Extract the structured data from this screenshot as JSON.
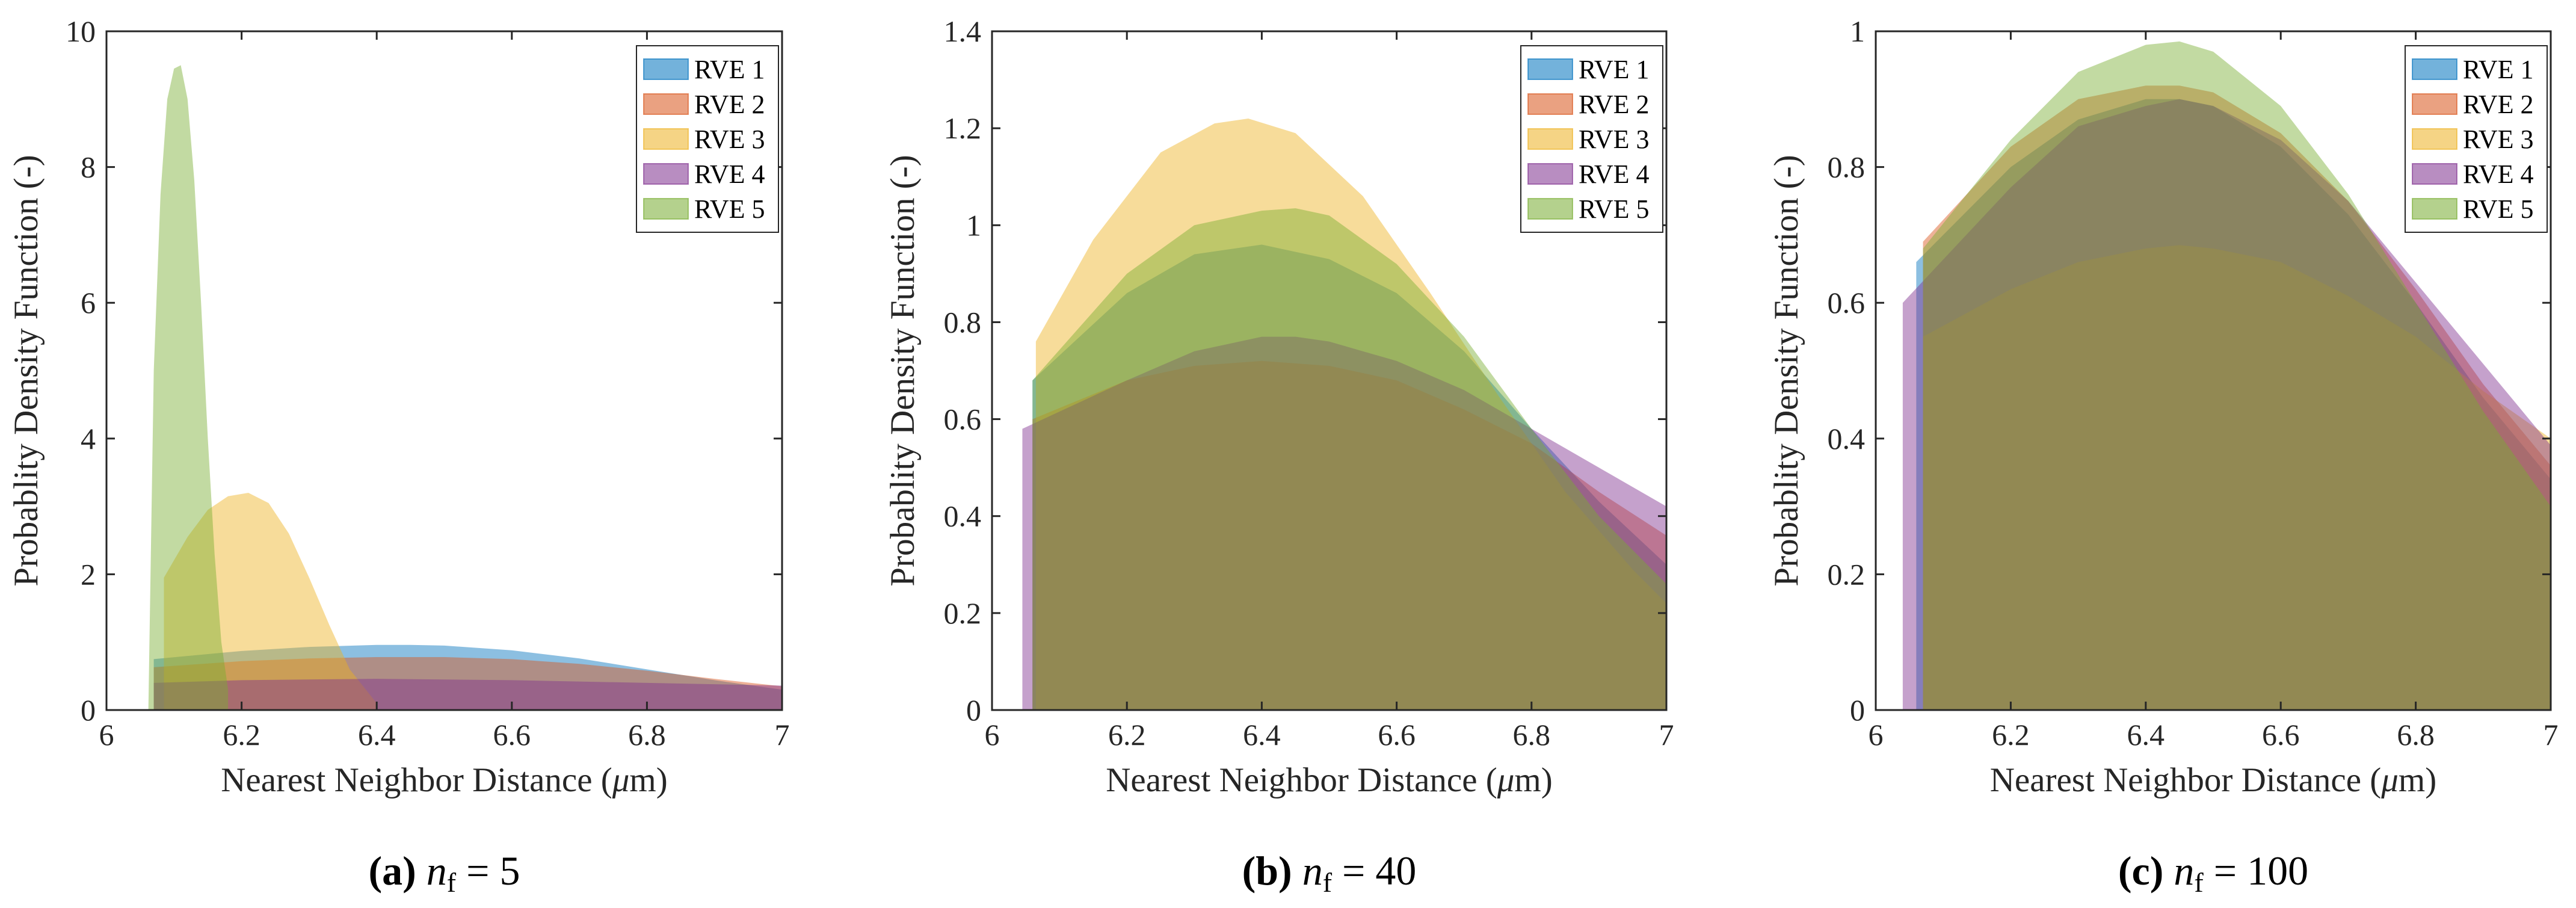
{
  "series_colors": [
    "#0072BD",
    "#D95319",
    "#EDB120",
    "#7E2F8E",
    "#77AC30"
  ],
  "chart_data": [
    {
      "type": "area",
      "caption": {
        "tag": "(a)",
        "var": "n",
        "sub": "f",
        "eq": " = 5"
      },
      "xlabel_main": "Nearest Neighbor Distance (",
      "xlabel_mu": "μ",
      "xlabel_end": "m)",
      "ylabel": "Probablity Density Function (-)",
      "xlim": [
        6,
        7
      ],
      "ylim": [
        0,
        10
      ],
      "xticks": [
        6,
        6.2,
        6.4,
        6.6,
        6.8,
        7
      ],
      "xtick_labels": [
        "6",
        "6.2",
        "6.4",
        "6.6",
        "6.8",
        "7"
      ],
      "yticks": [
        0,
        2,
        4,
        6,
        8,
        10
      ],
      "ytick_labels": [
        "0",
        "2",
        "4",
        "6",
        "8",
        "10"
      ],
      "legend": [
        "RVE 1",
        "RVE 2",
        "RVE 3",
        "RVE 4",
        "RVE 5"
      ],
      "legend_position": "top-right",
      "series": [
        {
          "name": "RVE 1",
          "x": [
            6.07,
            6.2,
            6.3,
            6.4,
            6.45,
            6.5,
            6.6,
            6.7,
            6.8,
            6.9,
            7.0
          ],
          "y": [
            0.75,
            0.87,
            0.93,
            0.96,
            0.96,
            0.95,
            0.88,
            0.76,
            0.6,
            0.44,
            0.3
          ]
        },
        {
          "name": "RVE 2",
          "x": [
            6.07,
            6.2,
            6.3,
            6.4,
            6.5,
            6.6,
            6.7,
            6.8,
            6.9,
            7.0
          ],
          "y": [
            0.63,
            0.72,
            0.76,
            0.78,
            0.78,
            0.75,
            0.68,
            0.58,
            0.46,
            0.35
          ]
        },
        {
          "name": "RVE 3",
          "x": [
            6.085,
            6.12,
            6.15,
            6.18,
            6.21,
            6.24,
            6.27,
            6.3,
            6.33,
            6.36,
            6.4
          ],
          "y": [
            1.95,
            2.55,
            2.95,
            3.15,
            3.2,
            3.05,
            2.6,
            1.95,
            1.25,
            0.6,
            0.1
          ]
        },
        {
          "name": "RVE 4",
          "x": [
            6.07,
            6.2,
            6.4,
            6.6,
            6.8,
            6.9,
            7.0
          ],
          "y": [
            0.4,
            0.44,
            0.46,
            0.44,
            0.4,
            0.38,
            0.36
          ]
        },
        {
          "name": "RVE 5",
          "x": [
            6.062,
            6.07,
            6.08,
            6.09,
            6.1,
            6.11,
            6.12,
            6.13,
            6.14,
            6.15,
            6.16,
            6.17,
            6.18
          ],
          "y": [
            0.0,
            5.0,
            7.6,
            9.0,
            9.45,
            9.5,
            9.0,
            7.8,
            6.0,
            4.0,
            2.3,
            1.0,
            0.3
          ]
        }
      ]
    },
    {
      "type": "area",
      "caption": {
        "tag": "(b)",
        "var": "n",
        "sub": "f",
        "eq": " = 40"
      },
      "xlabel_main": "Nearest Neighbor Distance (",
      "xlabel_mu": "μ",
      "xlabel_end": "m)",
      "ylabel": "Probablity Density Function (-)",
      "xlim": [
        6,
        7
      ],
      "ylim": [
        0,
        1.4
      ],
      "xticks": [
        6,
        6.2,
        6.4,
        6.6,
        6.8,
        7
      ],
      "xtick_labels": [
        "6",
        "6.2",
        "6.4",
        "6.6",
        "6.8",
        "7"
      ],
      "yticks": [
        0,
        0.2,
        0.4,
        0.6,
        0.8,
        1.0,
        1.2,
        1.4
      ],
      "ytick_labels": [
        "0",
        "0.2",
        "0.4",
        "0.6",
        "0.8",
        "1",
        "1.2",
        "1.4"
      ],
      "legend": [
        "RVE 1",
        "RVE 2",
        "RVE 3",
        "RVE 4",
        "RVE 5"
      ],
      "legend_position": "top-right",
      "series": [
        {
          "name": "RVE 1",
          "x": [
            6.06,
            6.2,
            6.3,
            6.4,
            6.5,
            6.6,
            6.7,
            6.8,
            6.9,
            7.0
          ],
          "y": [
            0.68,
            0.86,
            0.94,
            0.96,
            0.93,
            0.86,
            0.74,
            0.58,
            0.43,
            0.3
          ]
        },
        {
          "name": "RVE 2",
          "x": [
            6.06,
            6.2,
            6.3,
            6.4,
            6.5,
            6.6,
            6.7,
            6.8,
            6.9,
            7.0
          ],
          "y": [
            0.6,
            0.68,
            0.71,
            0.72,
            0.71,
            0.68,
            0.62,
            0.55,
            0.45,
            0.36
          ]
        },
        {
          "name": "RVE 3",
          "x": [
            6.065,
            6.15,
            6.25,
            6.33,
            6.38,
            6.45,
            6.55,
            6.65,
            6.75,
            6.85,
            6.95,
            7.0
          ],
          "y": [
            0.76,
            0.97,
            1.15,
            1.21,
            1.22,
            1.19,
            1.06,
            0.86,
            0.65,
            0.45,
            0.29,
            0.22
          ]
        },
        {
          "name": "RVE 4",
          "x": [
            6.045,
            6.2,
            6.3,
            6.4,
            6.45,
            6.5,
            6.6,
            6.7,
            6.8,
            6.9,
            7.0
          ],
          "y": [
            0.58,
            0.68,
            0.74,
            0.77,
            0.77,
            0.76,
            0.72,
            0.66,
            0.58,
            0.5,
            0.42
          ]
        },
        {
          "name": "RVE 5",
          "x": [
            6.06,
            6.2,
            6.3,
            6.4,
            6.45,
            6.5,
            6.6,
            6.7,
            6.8,
            6.9,
            7.0
          ],
          "y": [
            0.68,
            0.9,
            1.0,
            1.03,
            1.035,
            1.02,
            0.92,
            0.77,
            0.58,
            0.4,
            0.26
          ]
        }
      ]
    },
    {
      "type": "area",
      "caption": {
        "tag": "(c)",
        "var": "n",
        "sub": "f",
        "eq": " = 100"
      },
      "xlabel_main": "Nearest Neighbor Distance (",
      "xlabel_mu": "μ",
      "xlabel_end": "m)",
      "ylabel": "Probablity Density Function (-)",
      "xlim": [
        6,
        7
      ],
      "ylim": [
        0,
        1
      ],
      "xticks": [
        6,
        6.2,
        6.4,
        6.6,
        6.8,
        7
      ],
      "xtick_labels": [
        "6",
        "6.2",
        "6.4",
        "6.6",
        "6.8",
        "7"
      ],
      "yticks": [
        0,
        0.2,
        0.4,
        0.6,
        0.8,
        1.0
      ],
      "ytick_labels": [
        "0",
        "0.2",
        "0.4",
        "0.6",
        "0.8",
        "1"
      ],
      "legend": [
        "RVE 1",
        "RVE 2",
        "RVE 3",
        "RVE 4",
        "RVE 5"
      ],
      "legend_position": "top-right",
      "series": [
        {
          "name": "RVE 1",
          "x": [
            6.06,
            6.2,
            6.3,
            6.4,
            6.45,
            6.5,
            6.6,
            6.7,
            6.8,
            6.9,
            7.0
          ],
          "y": [
            0.66,
            0.8,
            0.87,
            0.9,
            0.9,
            0.89,
            0.83,
            0.73,
            0.6,
            0.46,
            0.34
          ]
        },
        {
          "name": "RVE 2",
          "x": [
            6.07,
            6.2,
            6.3,
            6.4,
            6.45,
            6.5,
            6.6,
            6.7,
            6.8,
            6.9,
            7.0
          ],
          "y": [
            0.69,
            0.83,
            0.9,
            0.92,
            0.92,
            0.91,
            0.85,
            0.75,
            0.62,
            0.48,
            0.36
          ]
        },
        {
          "name": "RVE 3",
          "x": [
            6.07,
            6.2,
            6.3,
            6.4,
            6.45,
            6.5,
            6.6,
            6.7,
            6.8,
            6.9,
            7.0
          ],
          "y": [
            0.55,
            0.62,
            0.66,
            0.68,
            0.685,
            0.68,
            0.66,
            0.61,
            0.55,
            0.47,
            0.4
          ]
        },
        {
          "name": "RVE 4",
          "x": [
            6.04,
            6.2,
            6.3,
            6.4,
            6.45,
            6.5,
            6.6,
            6.7,
            6.8,
            6.9,
            7.0
          ],
          "y": [
            0.6,
            0.77,
            0.86,
            0.89,
            0.9,
            0.89,
            0.84,
            0.75,
            0.63,
            0.51,
            0.39
          ]
        },
        {
          "name": "RVE 5",
          "x": [
            6.07,
            6.2,
            6.3,
            6.4,
            6.45,
            6.5,
            6.6,
            6.7,
            6.8,
            6.9,
            7.0
          ],
          "y": [
            0.68,
            0.84,
            0.94,
            0.98,
            0.985,
            0.97,
            0.89,
            0.76,
            0.6,
            0.44,
            0.3
          ]
        }
      ]
    }
  ]
}
